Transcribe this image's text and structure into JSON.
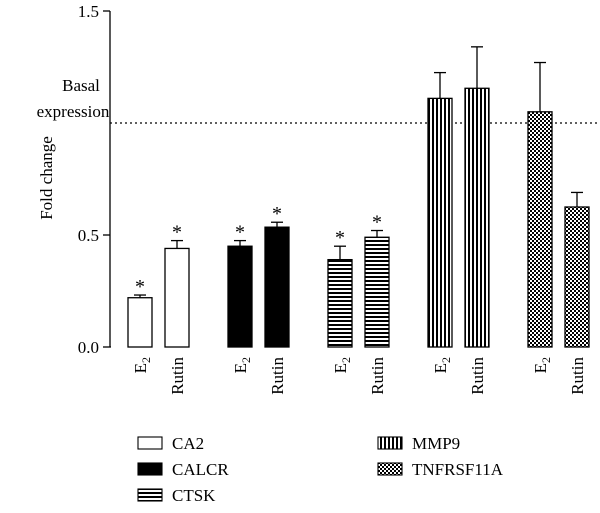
{
  "chart_data": {
    "type": "bar",
    "ylabel": "Fold change",
    "ylim": [
      0,
      1.5
    ],
    "yticks": [
      "0.0",
      "0.5",
      "1.5"
    ],
    "reference_line": {
      "value": 1.0,
      "label_line1": "Basal",
      "label_line2": "expression",
      "style": "dotted"
    },
    "significance_marker": "*",
    "x_labels": {
      "e2_base": "E",
      "e2_sub": "2",
      "rutin": "Rutin"
    },
    "series": [
      {
        "name": "CA2",
        "pattern": "white",
        "bars": [
          {
            "treatment": "E2",
            "value": 0.22,
            "error": 0.012,
            "significant": true
          },
          {
            "treatment": "Rutin",
            "value": 0.44,
            "error": 0.035,
            "significant": true
          }
        ]
      },
      {
        "name": "CALCR",
        "pattern": "black",
        "bars": [
          {
            "treatment": "E2",
            "value": 0.45,
            "error": 0.025,
            "significant": true
          },
          {
            "treatment": "Rutin",
            "value": 0.535,
            "error": 0.022,
            "significant": true
          }
        ]
      },
      {
        "name": "CTSK",
        "pattern": "horizontal",
        "bars": [
          {
            "treatment": "E2",
            "value": 0.39,
            "error": 0.06,
            "significant": true
          },
          {
            "treatment": "Rutin",
            "value": 0.49,
            "error": 0.03,
            "significant": true
          }
        ]
      },
      {
        "name": "MMP9",
        "pattern": "vertical",
        "bars": [
          {
            "treatment": "E2",
            "value": 1.11,
            "error": 0.115,
            "significant": false
          },
          {
            "treatment": "Rutin",
            "value": 1.155,
            "error": 0.185,
            "significant": false
          }
        ]
      },
      {
        "name": "TNFRSF11A",
        "pattern": "checker",
        "bars": [
          {
            "treatment": "E2",
            "value": 1.05,
            "error": 0.22,
            "significant": false
          },
          {
            "treatment": "Rutin",
            "value": 0.625,
            "error": 0.065,
            "significant": false
          }
        ]
      }
    ],
    "legend": {
      "placement": "bottom",
      "columns": 2
    }
  }
}
